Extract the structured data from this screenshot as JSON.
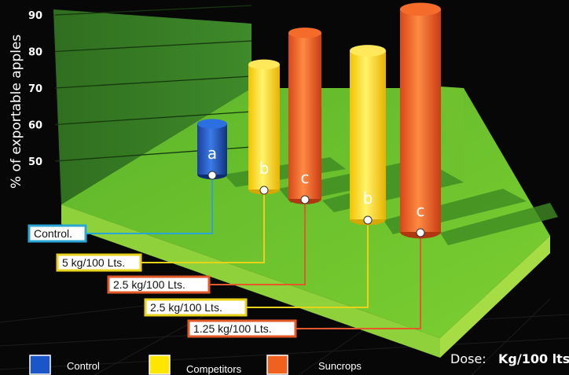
{
  "chart_data": {
    "type": "bar",
    "ylabel": "% of exportable apples",
    "yticks": [
      50,
      60,
      70,
      80,
      90
    ],
    "ylim": [
      40,
      90
    ],
    "legend": [
      {
        "label": "Control",
        "color": "#1a56c8"
      },
      {
        "label": "Competitors",
        "color": "#ffe600"
      },
      {
        "label": "Suncrops",
        "color": "#f0611f"
      }
    ],
    "series": [
      {
        "dose": "Control.",
        "group": "Control",
        "value": 55,
        "letter": "a",
        "color": "#1a56c8",
        "line_color": "#2aa6d6"
      },
      {
        "dose": "5 kg/100 Lts.",
        "group": "Competitors",
        "value": 70,
        "letter": "b",
        "color": "#ffe600",
        "line_color": "#e8d21a"
      },
      {
        "dose": "2.5 kg/100 Lts.",
        "group": "Suncrops",
        "value": 88,
        "letter": "c",
        "color": "#f0611f",
        "line_color": "#e2592a"
      },
      {
        "dose": "2.5 kg/100 Lts.",
        "group": "Competitors",
        "value": 73,
        "letter": "b",
        "color": "#ffe600",
        "line_color": "#e8d21a"
      },
      {
        "dose": "1.25 kg/100 Lts.",
        "group": "Suncrops",
        "value": 88,
        "letter": "c",
        "color": "#f0611f",
        "line_color": "#e2592a"
      }
    ],
    "dose_label": "Dose:",
    "dose_unit": "Kg/100 lts"
  }
}
